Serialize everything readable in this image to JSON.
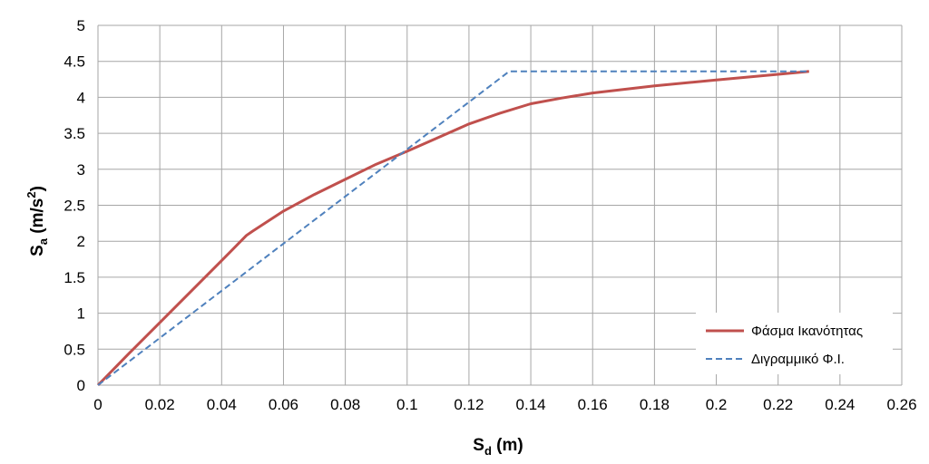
{
  "chart_data": {
    "type": "line",
    "xlabel": {
      "base": "S",
      "sub": "d",
      "suffix": " (m)"
    },
    "ylabel": {
      "base": "S",
      "sub": "a",
      "middle": " (m/s",
      "sup": "2",
      "suffix": ")"
    },
    "xlim": [
      0,
      0.26
    ],
    "ylim": [
      0,
      5
    ],
    "xticks": [
      "0",
      "0.02",
      "0.04",
      "0.06",
      "0.08",
      "0.1",
      "0.12",
      "0.14",
      "0.16",
      "0.18",
      "0.2",
      "0.22",
      "0.24",
      "0.26"
    ],
    "yticks": [
      "0",
      "0.5",
      "1",
      "1.5",
      "2",
      "2.5",
      "3",
      "3.5",
      "4",
      "4.5",
      "5"
    ],
    "grid": true,
    "legend": "bottom-right",
    "series": [
      {
        "name": "Φάσμα Ικανότητας",
        "color": "#c0504d",
        "style": "solid",
        "points": [
          [
            0,
            0
          ],
          [
            0.01,
            0.44
          ],
          [
            0.02,
            0.87
          ],
          [
            0.03,
            1.3
          ],
          [
            0.04,
            1.73
          ],
          [
            0.048,
            2.08
          ],
          [
            0.05,
            2.14
          ],
          [
            0.06,
            2.42
          ],
          [
            0.07,
            2.65
          ],
          [
            0.08,
            2.86
          ],
          [
            0.09,
            3.07
          ],
          [
            0.1,
            3.25
          ],
          [
            0.11,
            3.44
          ],
          [
            0.12,
            3.63
          ],
          [
            0.13,
            3.78
          ],
          [
            0.14,
            3.91
          ],
          [
            0.15,
            3.99
          ],
          [
            0.16,
            4.06
          ],
          [
            0.18,
            4.16
          ],
          [
            0.2,
            4.24
          ],
          [
            0.22,
            4.32
          ],
          [
            0.23,
            4.36
          ]
        ]
      },
      {
        "name": "Διγραμμικό Φ.Ι.",
        "color": "#4f81bd",
        "style": "dashed",
        "points": [
          [
            0,
            0
          ],
          [
            0.133,
            4.36
          ],
          [
            0.23,
            4.36
          ]
        ]
      }
    ]
  }
}
